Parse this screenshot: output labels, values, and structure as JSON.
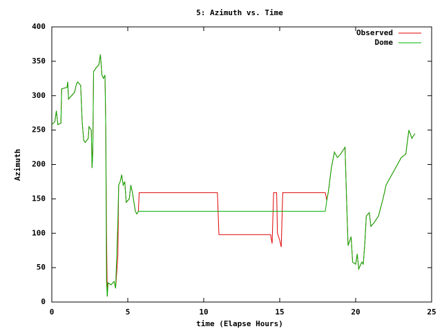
{
  "chart_data": {
    "type": "line",
    "title": "5: Azimuth vs. Time",
    "x_label": "time (Elapse Hours)",
    "y_label": "Azimuth",
    "x": [
      0,
      0.2,
      0.3,
      0.4,
      0.6,
      0.65,
      1.0,
      1.05,
      1.1,
      1.3,
      1.5,
      1.6,
      1.7,
      1.9,
      2.0,
      2.1,
      2.2,
      2.4,
      2.45,
      2.6,
      2.65,
      2.7,
      2.75,
      2.9,
      3.1,
      3.2,
      3.3,
      3.4,
      3.5,
      3.55,
      3.6,
      3.65,
      3.7,
      3.9,
      4.1,
      4.2,
      4.35,
      4.4,
      4.5,
      4.6,
      4.7,
      4.8,
      4.9,
      5.1,
      5.2,
      5.3,
      5.5,
      5.6,
      5.7,
      5.75,
      10.9,
      11.0,
      14.4,
      14.5,
      14.6,
      14.8,
      14.85,
      15.0,
      15.1,
      15.2,
      18.0,
      18.1,
      18.2,
      18.4,
      18.6,
      18.8,
      19.0,
      19.3,
      19.4,
      19.5,
      19.7,
      19.8,
      20.0,
      20.1,
      20.2,
      20.4,
      20.5,
      20.6,
      20.7,
      20.9,
      21.0,
      21.2,
      21.5,
      21.8,
      22.0,
      22.5,
      23.0,
      23.3,
      23.5,
      23.7,
      23.9
    ],
    "series": [
      {
        "name": "Observed",
        "color": "#e00000",
        "values": [
          258,
          262,
          278,
          258,
          260,
          310,
          312,
          320,
          295,
          300,
          305,
          315,
          320,
          315,
          262,
          235,
          232,
          238,
          255,
          250,
          195,
          220,
          335,
          340,
          345,
          360,
          330,
          325,
          330,
          258,
          105,
          8,
          28,
          25,
          30,
          20,
          68,
          170,
          175,
          185,
          170,
          175,
          145,
          150,
          170,
          160,
          132,
          128,
          132,
          159,
          159,
          98,
          98,
          85,
          159,
          159,
          100,
          90,
          80,
          159,
          159,
          148,
          160,
          195,
          218,
          210,
          215,
          225,
          150,
          82,
          95,
          58,
          55,
          70,
          48,
          58,
          55,
          85,
          125,
          130,
          110,
          115,
          125,
          150,
          170,
          190,
          210,
          215,
          250,
          238,
          245
        ]
      },
      {
        "name": "Dome",
        "color": "#00b000",
        "values": [
          258,
          262,
          278,
          258,
          260,
          310,
          312,
          320,
          295,
          300,
          305,
          315,
          320,
          315,
          262,
          235,
          232,
          238,
          255,
          250,
          195,
          220,
          335,
          340,
          345,
          360,
          330,
          325,
          330,
          258,
          30,
          8,
          28,
          25,
          30,
          20,
          120,
          170,
          175,
          185,
          170,
          175,
          145,
          150,
          170,
          160,
          132,
          128,
          132,
          132,
          132,
          132,
          132,
          132,
          132,
          132,
          132,
          132,
          132,
          132,
          132,
          148,
          160,
          195,
          218,
          210,
          215,
          225,
          150,
          82,
          95,
          58,
          55,
          70,
          48,
          58,
          55,
          85,
          125,
          130,
          110,
          115,
          125,
          150,
          170,
          190,
          210,
          215,
          250,
          238,
          245
        ]
      }
    ],
    "xlim": [
      0,
      25
    ],
    "xticks": [
      0,
      5,
      10,
      15,
      20,
      25
    ],
    "ylim": [
      0,
      400
    ],
    "yticks": [
      0,
      50,
      100,
      150,
      200,
      250,
      300,
      350,
      400
    ],
    "legend": "top-right"
  }
}
